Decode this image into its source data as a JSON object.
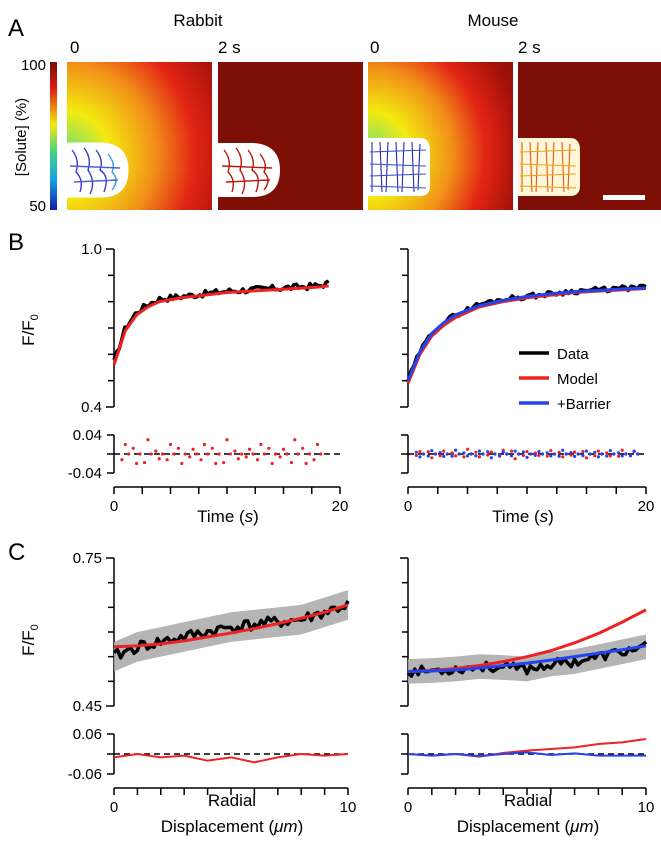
{
  "panel_a": {
    "letter": "A",
    "colorbar": {
      "max_label": "100",
      "min_label": "50",
      "label": "[Solute] (%)"
    },
    "species": [
      {
        "name": "Rabbit",
        "frames": [
          {
            "label": "0"
          },
          {
            "label": "2 s"
          }
        ]
      },
      {
        "name": "Mouse",
        "frames": [
          {
            "label": "0"
          },
          {
            "label": "2 s"
          }
        ]
      }
    ]
  },
  "panel_b": {
    "letter": "B"
  },
  "panel_c": {
    "letter": "C"
  },
  "legend": {
    "items": [
      {
        "name": "Data",
        "color": "#000000"
      },
      {
        "name": "Model",
        "color": "#ee2222"
      },
      {
        "name": "+Barrier",
        "color": "#2244ee"
      }
    ]
  },
  "chart_data": [
    {
      "id": "B-rabbit",
      "type": "line",
      "ylabel": "F/F0",
      "xlabel": "Time (s)",
      "xlim": [
        0,
        20
      ],
      "ylim": [
        0.4,
        1.0
      ],
      "ytick_labels": [
        "1.0",
        "0.4"
      ],
      "xtick_labels": [
        "0",
        "20"
      ],
      "x": [
        0,
        1,
        2,
        3,
        4,
        6,
        8,
        10,
        12,
        14,
        16,
        18,
        19
      ],
      "series": [
        {
          "name": "Data",
          "values": [
            0.57,
            0.7,
            0.76,
            0.79,
            0.81,
            0.82,
            0.83,
            0.84,
            0.845,
            0.85,
            0.855,
            0.86,
            0.87
          ]
        },
        {
          "name": "Model",
          "values": [
            0.56,
            0.69,
            0.75,
            0.78,
            0.8,
            0.815,
            0.825,
            0.835,
            0.84,
            0.845,
            0.85,
            0.855,
            0.86
          ]
        }
      ],
      "residuals": {
        "ylim": [
          -0.04,
          0.04
        ],
        "ytick_labels": [
          "0.04",
          "-0.04"
        ],
        "x": [
          1,
          2,
          3,
          4,
          5,
          6,
          7,
          8,
          9,
          10,
          11,
          12,
          13,
          14,
          15,
          16,
          17,
          18
        ],
        "Model": [
          0.02,
          -0.02,
          0.03,
          -0.01,
          0.02,
          -0.02,
          0.01,
          0.02,
          -0.02,
          0.03,
          -0.01,
          0.01,
          0.02,
          -0.02,
          0.01,
          0.03,
          -0.02,
          0.02
        ]
      }
    },
    {
      "id": "B-mouse",
      "type": "line",
      "ylabel": "F/F0",
      "xlabel": "Time (s)",
      "xlim": [
        0,
        20
      ],
      "ylim": [
        0.4,
        1.0
      ],
      "xtick_labels": [
        "0",
        "20"
      ],
      "x": [
        0,
        1,
        2,
        3,
        4,
        6,
        8,
        10,
        12,
        14,
        16,
        18,
        20
      ],
      "series": [
        {
          "name": "Data",
          "values": [
            0.5,
            0.61,
            0.68,
            0.72,
            0.75,
            0.79,
            0.81,
            0.82,
            0.83,
            0.84,
            0.845,
            0.85,
            0.855
          ]
        },
        {
          "name": "Model",
          "values": [
            0.49,
            0.6,
            0.67,
            0.71,
            0.74,
            0.78,
            0.8,
            0.815,
            0.825,
            0.835,
            0.84,
            0.845,
            0.85
          ]
        },
        {
          "name": "+Barrier",
          "values": [
            0.5,
            0.61,
            0.68,
            0.72,
            0.75,
            0.785,
            0.805,
            0.82,
            0.83,
            0.838,
            0.843,
            0.848,
            0.852
          ]
        }
      ],
      "residuals": {
        "ylim": [
          -0.04,
          0.04
        ],
        "x": [
          1,
          2,
          3,
          4,
          5,
          6,
          7,
          8,
          9,
          10,
          11,
          12,
          13,
          14,
          15,
          16,
          17,
          18,
          19
        ],
        "Model": [
          0.005,
          -0.008,
          0.006,
          -0.004,
          0.01,
          -0.006,
          0.004,
          0.008,
          -0.01,
          0.005,
          -0.003,
          0.007,
          -0.006,
          0.004,
          -0.008,
          0.006,
          -0.004,
          0.008,
          0.005
        ],
        "+Barrier": [
          -0.006,
          0.007,
          -0.005,
          0.008,
          -0.004,
          0.006,
          -0.008,
          0.004,
          0.006,
          -0.007,
          0.005,
          -0.004,
          0.008,
          -0.005,
          0.006,
          -0.006,
          0.007,
          -0.004,
          0.006
        ]
      }
    },
    {
      "id": "C-rabbit",
      "type": "line",
      "ylabel": "F/F0",
      "xlabel": "Radial Displacement (μm)",
      "xlim": [
        0,
        10
      ],
      "ylim": [
        0.45,
        0.75
      ],
      "ytick_labels": [
        "0.75",
        "0.45"
      ],
      "xtick_labels": [
        "0",
        "10"
      ],
      "x": [
        0,
        1,
        2,
        3,
        4,
        5,
        6,
        7,
        8,
        9,
        10
      ],
      "series": [
        {
          "name": "Data",
          "values": [
            0.55,
            0.57,
            0.58,
            0.59,
            0.6,
            0.61,
            0.615,
            0.62,
            0.625,
            0.64,
            0.655
          ]
        },
        {
          "name": "Model",
          "values": [
            0.57,
            0.572,
            0.576,
            0.582,
            0.59,
            0.598,
            0.607,
            0.617,
            0.628,
            0.64,
            0.655
          ]
        }
      ],
      "band_halfwidth": 0.03,
      "residuals": {
        "ylim": [
          -0.06,
          0.06
        ],
        "ytick_labels": [
          "0.06",
          "-0.06"
        ],
        "x": [
          0,
          1,
          2,
          3,
          4,
          5,
          6,
          7,
          8,
          9,
          10
        ],
        "Model": [
          -0.01,
          0.0,
          -0.01,
          -0.005,
          -0.02,
          -0.01,
          -0.025,
          -0.01,
          0.0,
          -0.005,
          0.0
        ]
      }
    },
    {
      "id": "C-mouse",
      "type": "line",
      "ylabel": "F/F0",
      "xlabel": "Radial Displacement (μm)",
      "xlim": [
        0,
        10
      ],
      "ylim": [
        0.45,
        0.75
      ],
      "xtick_labels": [
        "0",
        "10"
      ],
      "x": [
        0,
        1,
        2,
        3,
        4,
        5,
        6,
        7,
        8,
        9,
        10
      ],
      "series": [
        {
          "name": "Data",
          "values": [
            0.52,
            0.522,
            0.525,
            0.53,
            0.528,
            0.525,
            0.535,
            0.54,
            0.55,
            0.56,
            0.57
          ]
        },
        {
          "name": "Model",
          "values": [
            0.52,
            0.522,
            0.526,
            0.532,
            0.54,
            0.55,
            0.562,
            0.578,
            0.597,
            0.62,
            0.645
          ]
        },
        {
          "name": "+Barrier",
          "values": [
            0.52,
            0.521,
            0.523,
            0.527,
            0.532,
            0.537,
            0.543,
            0.55,
            0.557,
            0.564,
            0.572
          ]
        }
      ],
      "band_halfwidth": 0.025,
      "residuals": {
        "ylim": [
          -0.06,
          0.06
        ],
        "x": [
          0,
          1,
          2,
          3,
          4,
          5,
          6,
          7,
          8,
          9,
          10
        ],
        "Model": [
          0.0,
          -0.005,
          0.0,
          -0.008,
          0.003,
          0.01,
          0.015,
          0.02,
          0.03,
          0.035,
          0.045
        ],
        "+Barrier": [
          0.0,
          -0.005,
          0.0,
          -0.006,
          0.0,
          0.005,
          -0.003,
          0.002,
          -0.005,
          -0.005,
          -0.005
        ]
      }
    }
  ]
}
